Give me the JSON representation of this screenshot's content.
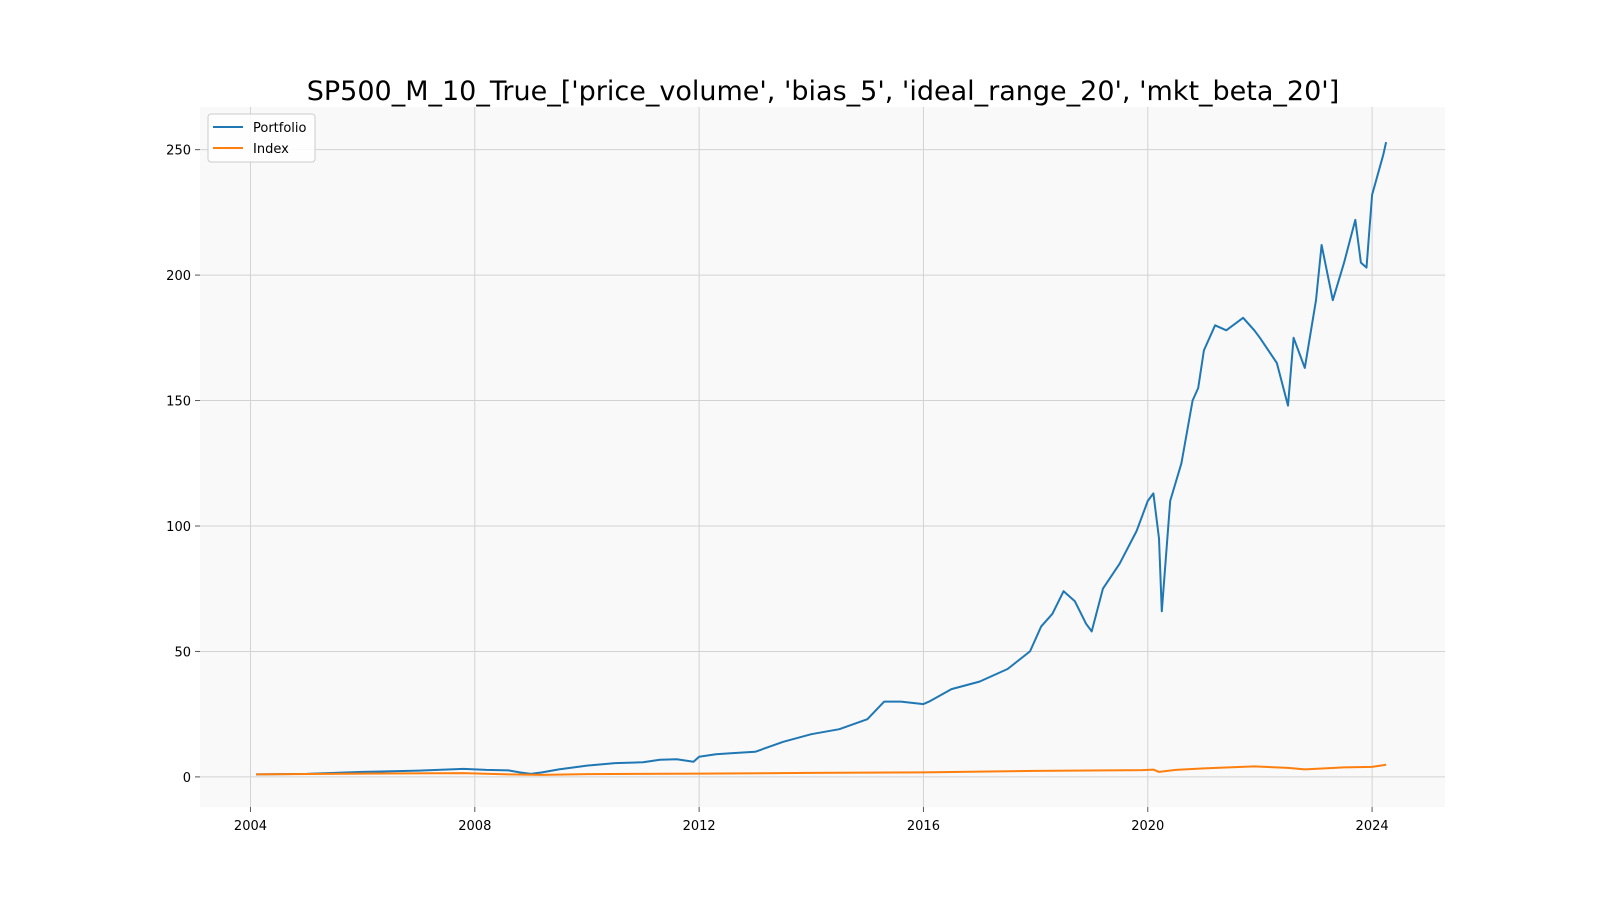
{
  "chart_data": {
    "type": "line",
    "title": "SP500_M_10_True_['price_volume', 'bias_5', 'ideal_range_20', 'mkt_beta_20']",
    "xlabel": "",
    "ylabel": "",
    "xlim": [
      2003.1,
      2025.3
    ],
    "ylim": [
      -12,
      267
    ],
    "x_ticks": [
      2004,
      2008,
      2012,
      2016,
      2020,
      2024
    ],
    "y_ticks": [
      0,
      50,
      100,
      150,
      200,
      250
    ],
    "grid": true,
    "legend_position": "top-left",
    "colors": {
      "plot_bg": "#f9f9f9",
      "grid": "#d3d3d3",
      "portfolio": "#1f77b4",
      "index": "#ff7f0e"
    },
    "series": [
      {
        "name": "Portfolio",
        "color": "#1f77b4",
        "x": [
          2004.1,
          2005.0,
          2006.0,
          2007.0,
          2007.8,
          2008.2,
          2008.6,
          2008.8,
          2009.0,
          2009.2,
          2009.5,
          2010.0,
          2010.5,
          2011.0,
          2011.3,
          2011.6,
          2011.9,
          2012.0,
          2012.3,
          2012.6,
          2013.0,
          2013.5,
          2014.0,
          2014.5,
          2015.0,
          2015.3,
          2015.6,
          2016.0,
          2016.1,
          2016.5,
          2017.0,
          2017.5,
          2017.9,
          2018.1,
          2018.3,
          2018.5,
          2018.7,
          2018.9,
          2019.0,
          2019.2,
          2019.5,
          2019.8,
          2020.0,
          2020.1,
          2020.2,
          2020.25,
          2020.4,
          2020.6,
          2020.8,
          2020.9,
          2021.0,
          2021.2,
          2021.4,
          2021.7,
          2021.9,
          2022.0,
          2022.3,
          2022.5,
          2022.6,
          2022.8,
          2023.0,
          2023.1,
          2023.3,
          2023.5,
          2023.7,
          2023.8,
          2023.9,
          2024.0,
          2024.2,
          2024.25
        ],
        "values": [
          1.0,
          1.2,
          2.0,
          2.5,
          3.2,
          2.8,
          2.6,
          1.8,
          1.2,
          1.8,
          3.0,
          4.5,
          5.5,
          5.8,
          6.8,
          7.0,
          6.0,
          8.0,
          9.0,
          9.5,
          10.0,
          14.0,
          17.0,
          19.0,
          23.0,
          30.0,
          30.0,
          29.0,
          30.0,
          35.0,
          38.0,
          43.0,
          50.0,
          60.0,
          65.0,
          74.0,
          70.0,
          61.0,
          58.0,
          75.0,
          85.0,
          98.0,
          110.0,
          113.0,
          95.0,
          66.0,
          110.0,
          125.0,
          150.0,
          155.0,
          170.0,
          180.0,
          178.0,
          183.0,
          178.0,
          175.0,
          165.0,
          148.0,
          175.0,
          163.0,
          190.0,
          212.0,
          190.0,
          205.0,
          222.0,
          205.0,
          203.0,
          232.0,
          248.0,
          253.0
        ]
      },
      {
        "name": "Index",
        "color": "#ff7f0e",
        "x": [
          2004.1,
          2006.0,
          2007.8,
          2008.6,
          2009.2,
          2010.0,
          2012.0,
          2014.0,
          2016.0,
          2018.0,
          2019.9,
          2020.1,
          2020.2,
          2020.5,
          2021.0,
          2021.9,
          2022.5,
          2022.8,
          2023.5,
          2024.0,
          2024.25
        ],
        "values": [
          1.0,
          1.3,
          1.5,
          1.0,
          0.8,
          1.1,
          1.3,
          1.6,
          1.8,
          2.4,
          2.7,
          2.9,
          2.0,
          2.8,
          3.4,
          4.2,
          3.6,
          3.0,
          3.8,
          4.0,
          4.8
        ]
      }
    ]
  }
}
